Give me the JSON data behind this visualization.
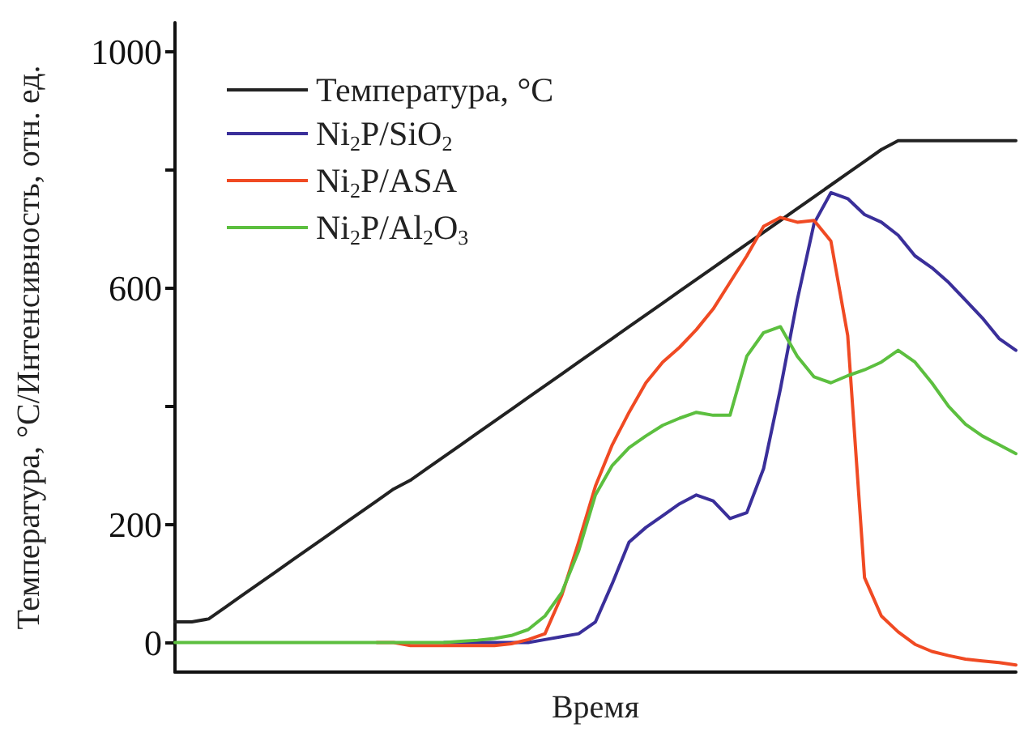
{
  "chart_data": {
    "type": "line",
    "xlabel": "Время",
    "ylabel": "Температура, °C/Интенсивность, отн. ед.",
    "categories": [
      null,
      null,
      null,
      null,
      null,
      null,
      null,
      null,
      null,
      null,
      null,
      null,
      null,
      null,
      null,
      null,
      null,
      null,
      null,
      null,
      null,
      null,
      null,
      null,
      null,
      null,
      null,
      null,
      null,
      null,
      null,
      null,
      null,
      null,
      null,
      null,
      null,
      null,
      null,
      null,
      null,
      null,
      null,
      null,
      null,
      null,
      null,
      null,
      null,
      null,
      null
    ],
    "ylim": [
      -50,
      1050
    ],
    "yticks": [
      0,
      200,
      {
        "value": 400,
        "label": null
      },
      600,
      {
        "value": 800,
        "label": null
      },
      1000
    ],
    "tick_labels": "y",
    "grid": false,
    "legend": "top left",
    "marker": "none",
    "line_style": "solid",
    "series": [
      {
        "name": "Температура, °C",
        "color": "#222222",
        "values": [
          35,
          35,
          40,
          60,
          80,
          100,
          120,
          140,
          160,
          180,
          200,
          220,
          240,
          260,
          275,
          295,
          315,
          335,
          355,
          375,
          395,
          415,
          435,
          455,
          475,
          495,
          515,
          535,
          555,
          575,
          595,
          615,
          635,
          655,
          675,
          695,
          715,
          735,
          755,
          775,
          795,
          815,
          835,
          850,
          850,
          850,
          850,
          850,
          850,
          850,
          850
        ]
      },
      {
        "name": "Ni$_{2}$P/SiO$_{2}$",
        "color": "#3a2f9a",
        "values": [
          null,
          null,
          null,
          null,
          null,
          null,
          null,
          null,
          null,
          null,
          null,
          null,
          null,
          null,
          null,
          null,
          0,
          0,
          0,
          0,
          0,
          0,
          5,
          10,
          15,
          35,
          100,
          170,
          195,
          215,
          235,
          250,
          240,
          210,
          220,
          295,
          430,
          580,
          710,
          762,
          752,
          725,
          712,
          690,
          655,
          635,
          610,
          580,
          550,
          515,
          495
        ]
      },
      {
        "name": "Ni$_{2}$P/ASA",
        "color": "#f04a23",
        "values": [
          null,
          null,
          null,
          null,
          null,
          null,
          null,
          null,
          null,
          null,
          null,
          null,
          0,
          0,
          -5,
          -5,
          -5,
          -5,
          -5,
          -5,
          -2,
          5,
          15,
          80,
          170,
          265,
          335,
          390,
          440,
          475,
          500,
          530,
          565,
          610,
          655,
          705,
          720,
          712,
          715,
          680,
          520,
          110,
          45,
          18,
          -3,
          -15,
          -22,
          -28,
          -31,
          -34,
          -38
        ]
      },
      {
        "name": "Ni$_{2}$P/Al$_{2}$O$_{3}$",
        "color": "#5cbf3f",
        "values": [
          0,
          0,
          0,
          0,
          0,
          0,
          0,
          0,
          0,
          0,
          0,
          0,
          0,
          0,
          0,
          0,
          0,
          2,
          4,
          7,
          12,
          22,
          45,
          85,
          155,
          250,
          300,
          330,
          350,
          368,
          380,
          390,
          385,
          385,
          485,
          525,
          535,
          485,
          450,
          440,
          452,
          462,
          475,
          495,
          475,
          440,
          400,
          370,
          350,
          335,
          320
        ]
      }
    ]
  }
}
